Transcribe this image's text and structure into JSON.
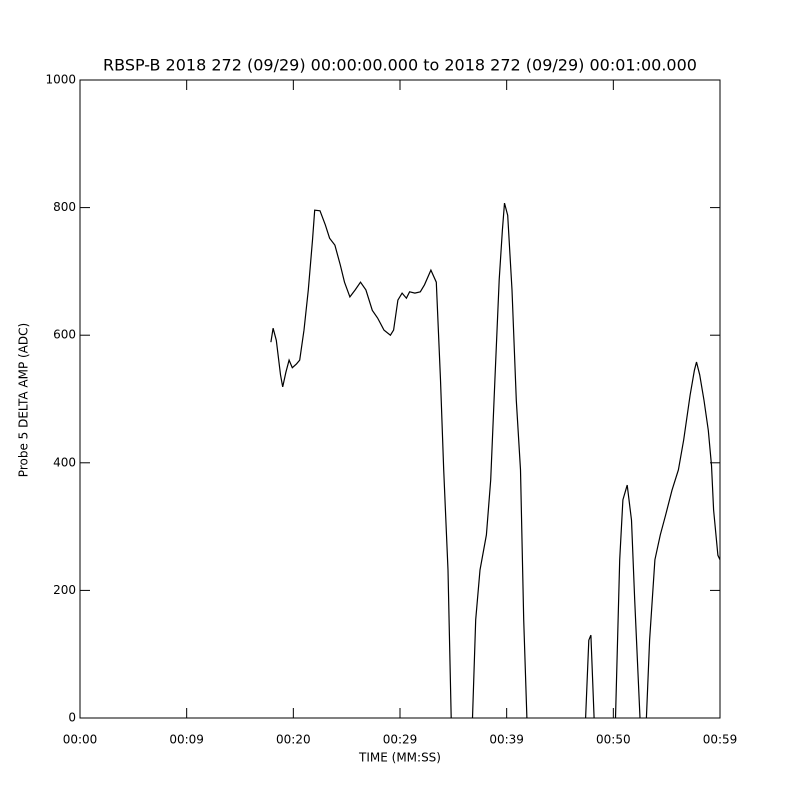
{
  "chart_data": {
    "type": "line",
    "title": "RBSP-B 2018 272 (09/29) 00:00:00.000 to 2018 272 (09/29) 00:01:00.000",
    "x_label": "TIME (MM:SS)",
    "y_label": "Probe 5 DELTA AMP (ADC)",
    "xlim": [
      0,
      60
    ],
    "xticks": [
      {
        "value": 0,
        "label": "00:00"
      },
      {
        "value": 10,
        "label": "00:09"
      },
      {
        "value": 20,
        "label": "00:20"
      },
      {
        "value": 30,
        "label": "00:29"
      },
      {
        "value": 40,
        "label": "00:39"
      },
      {
        "value": 50,
        "label": "00:50"
      },
      {
        "value": 60,
        "label": "00:59"
      }
    ],
    "ylim": [
      0,
      1000
    ],
    "yticks": [
      0,
      200,
      400,
      600,
      800,
      1000
    ],
    "series": [
      {
        "color": "#000000",
        "x": [
          17.9,
          18.1,
          18.4,
          18.8,
          19.0,
          19.3,
          19.6,
          19.9,
          20.3,
          20.6,
          21.0,
          21.4,
          21.8,
          22.0,
          22.5,
          23.0,
          23.4,
          23.9,
          24.4,
          24.8,
          25.3,
          25.8,
          26.3,
          26.8,
          27.4,
          27.9,
          28.5,
          29.1,
          29.4,
          29.8,
          30.2,
          30.6,
          30.9,
          31.4,
          31.9,
          32.3,
          32.9,
          33.4,
          33.8,
          34.1,
          34.5,
          34.8,
          35.8,
          36.8,
          37.1,
          37.5,
          38.1,
          38.5,
          38.9,
          39.3,
          39.6,
          39.8,
          40.1,
          40.5,
          40.9,
          41.3,
          41.6,
          41.9,
          44.6,
          47.4,
          47.7,
          47.9,
          48.2,
          49.2,
          50.2,
          50.6,
          50.9,
          51.3,
          51.7,
          52.0,
          52.5,
          52.8,
          53.1,
          53.4,
          53.9,
          54.4,
          54.9,
          55.5,
          56.1,
          56.6,
          57.2,
          57.6,
          57.8,
          58.1,
          58.5,
          58.9,
          59.2,
          59.4,
          59.8,
          60.0
        ],
        "values": [
          589,
          611,
          592,
          538,
          519,
          542,
          561,
          549,
          555,
          561,
          608,
          671,
          749,
          796,
          795,
          773,
          752,
          741,
          710,
          683,
          660,
          671,
          683,
          671,
          639,
          627,
          608,
          600,
          608,
          655,
          666,
          658,
          668,
          666,
          668,
          679,
          702,
          683,
          530,
          389,
          232,
          0,
          null,
          0,
          154,
          232,
          287,
          373,
          530,
          687,
          765,
          807,
          788,
          671,
          498,
          389,
          154,
          0,
          null,
          0,
          122,
          130,
          0,
          null,
          0,
          248,
          342,
          365,
          310,
          185,
          0,
          null,
          0,
          122,
          248,
          287,
          318,
          357,
          389,
          436,
          506,
          545,
          558,
          538,
          498,
          451,
          396,
          326,
          255,
          248
        ]
      }
    ]
  }
}
